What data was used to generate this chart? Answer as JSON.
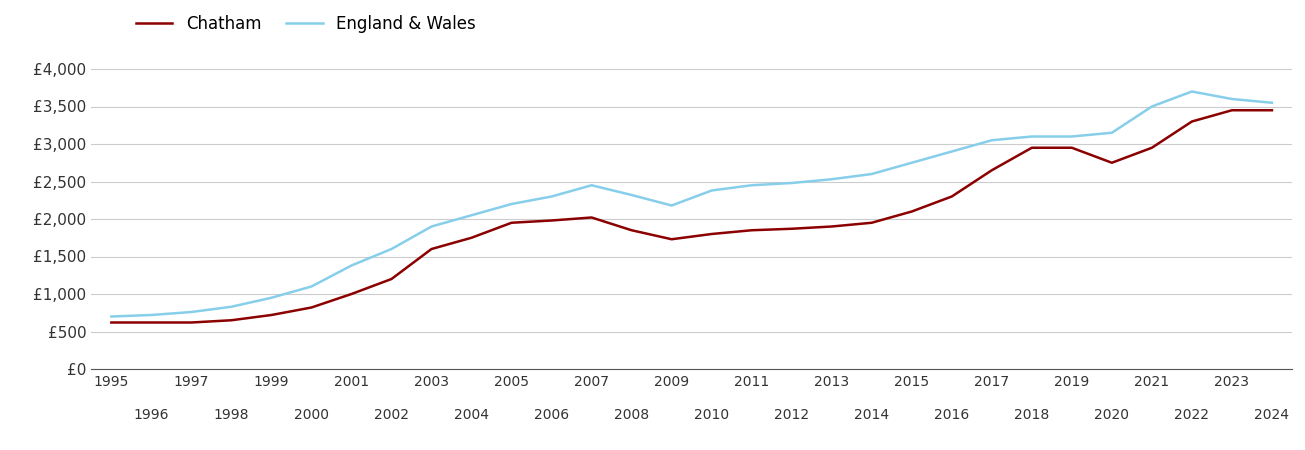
{
  "chatham_years": [
    1995,
    1996,
    1997,
    1998,
    1999,
    2000,
    2001,
    2002,
    2003,
    2004,
    2005,
    2006,
    2007,
    2008,
    2009,
    2010,
    2011,
    2012,
    2013,
    2014,
    2015,
    2016,
    2017,
    2018,
    2019,
    2020,
    2021,
    2022,
    2023,
    2024
  ],
  "chatham_values": [
    620,
    620,
    620,
    650,
    720,
    820,
    1000,
    1200,
    1600,
    1750,
    1950,
    1980,
    2020,
    1850,
    1730,
    1800,
    1850,
    1870,
    1900,
    1950,
    2100,
    2300,
    2650,
    2950,
    2950,
    2750,
    2950,
    3300,
    3450,
    3450
  ],
  "ew_years": [
    1995,
    1996,
    1997,
    1998,
    1999,
    2000,
    2001,
    2002,
    2003,
    2004,
    2005,
    2006,
    2007,
    2008,
    2009,
    2010,
    2011,
    2012,
    2013,
    2014,
    2015,
    2016,
    2017,
    2018,
    2019,
    2020,
    2021,
    2022,
    2023,
    2024
  ],
  "ew_values": [
    700,
    720,
    760,
    830,
    950,
    1100,
    1380,
    1600,
    1900,
    2050,
    2200,
    2300,
    2450,
    2320,
    2180,
    2380,
    2450,
    2480,
    2530,
    2600,
    2750,
    2900,
    3050,
    3100,
    3100,
    3150,
    3500,
    3700,
    3600,
    3550
  ],
  "chatham_color": "#8B0000",
  "ew_color": "#87CEEB",
  "chatham_label": "Chatham",
  "ew_label": "England & Wales",
  "ytick_labels": [
    "£0",
    "£500",
    "£1,000",
    "£1,500",
    "£2,000",
    "£2,500",
    "£3,000",
    "£3,500",
    "£4,000"
  ],
  "ytick_values": [
    0,
    500,
    1000,
    1500,
    2000,
    2500,
    3000,
    3500,
    4000
  ],
  "ylim": [
    0,
    4200
  ],
  "xlim": [
    1994.5,
    2024.5
  ],
  "grid_color": "#cccccc",
  "bg_color": "#ffffff",
  "line_width": 1.8,
  "xticks_odd": [
    1995,
    1997,
    1999,
    2001,
    2003,
    2005,
    2007,
    2009,
    2011,
    2013,
    2015,
    2017,
    2019,
    2021,
    2023
  ],
  "xticks_even": [
    1996,
    1998,
    2000,
    2002,
    2004,
    2006,
    2008,
    2010,
    2012,
    2014,
    2016,
    2018,
    2020,
    2022,
    2024
  ]
}
